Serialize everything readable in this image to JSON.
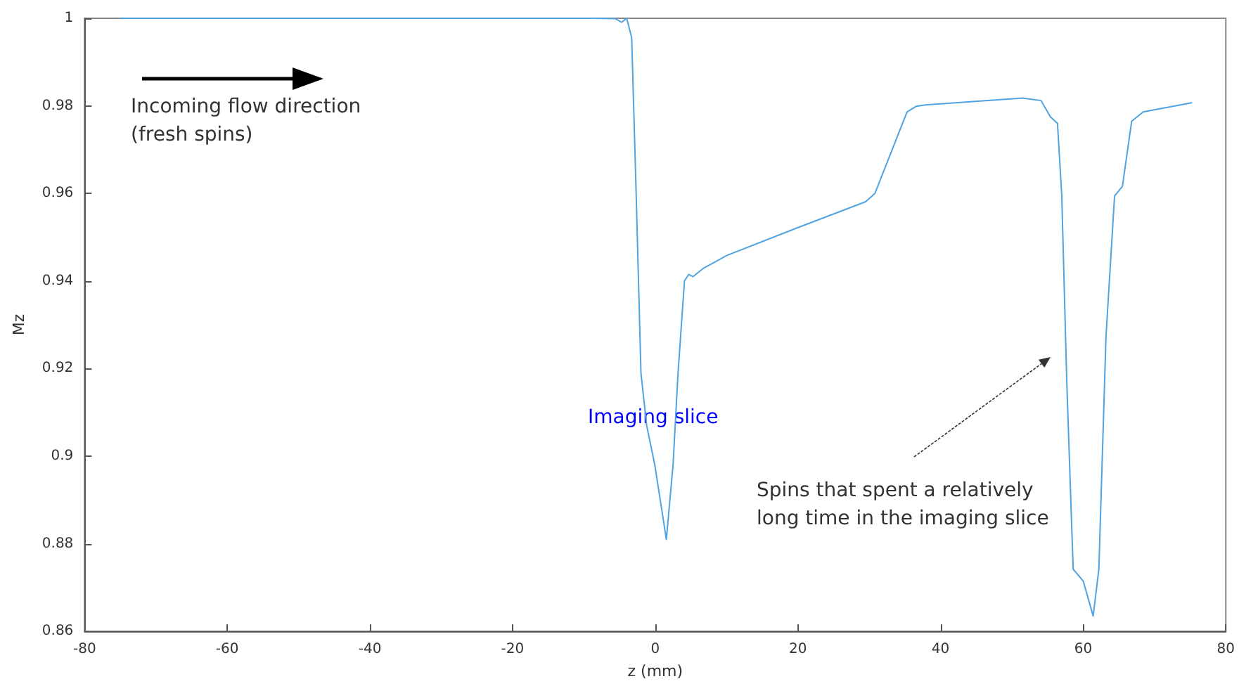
{
  "chart_data": {
    "type": "line",
    "xlabel": "z (mm)",
    "ylabel": "Mz",
    "x": [
      -75,
      -20,
      -8.8,
      -5.6,
      -4.7,
      -4,
      -3.3,
      -2.7,
      -2,
      -1.2,
      -0.06,
      1.56,
      2.5,
      3.2,
      4.1,
      4.7,
      5.3,
      6.75,
      10,
      19.7,
      29.5,
      30.8,
      35.3,
      36.6,
      37.9,
      51.5,
      54.1,
      55.4,
      56.4,
      57,
      57.7,
      58.6,
      60,
      61.4,
      62.2,
      63.2,
      64.4,
      65.5,
      66.8,
      68.4,
      75.2
    ],
    "series": [
      {
        "color": "#4fa3e0",
        "values": [
          1,
          1,
          1,
          0.9999,
          0.9991,
          1,
          0.9956,
          0.9616,
          0.919,
          0.907,
          0.898,
          0.881,
          0.898,
          0.919,
          0.94,
          0.9415,
          0.941,
          0.9429,
          0.9458,
          0.952,
          0.9581,
          0.96,
          0.9786,
          0.9799,
          0.9802,
          0.9818,
          0.9812,
          0.9775,
          0.976,
          0.9594,
          0.9169,
          0.8742,
          0.8715,
          0.8635,
          0.8742,
          0.9274,
          0.9594,
          0.9616,
          0.9765,
          0.9786,
          0.9807
        ]
      }
    ],
    "xlim": [
      -80,
      80
    ],
    "xticks": [
      -80,
      -60,
      -40,
      -20,
      0,
      20,
      40,
      60,
      80
    ],
    "ylim": [
      0.86,
      1
    ],
    "yticks": [
      0.86,
      0.88,
      0.9,
      0.92,
      0.94,
      0.96,
      0.98,
      1
    ],
    "marker": "none",
    "line_style": "solid",
    "annotations": [
      "Incoming flow direction\n(fresh spins)",
      "Imaging slice",
      "Spins that spent a relatively\nlong time in the imaging slice"
    ]
  }
}
